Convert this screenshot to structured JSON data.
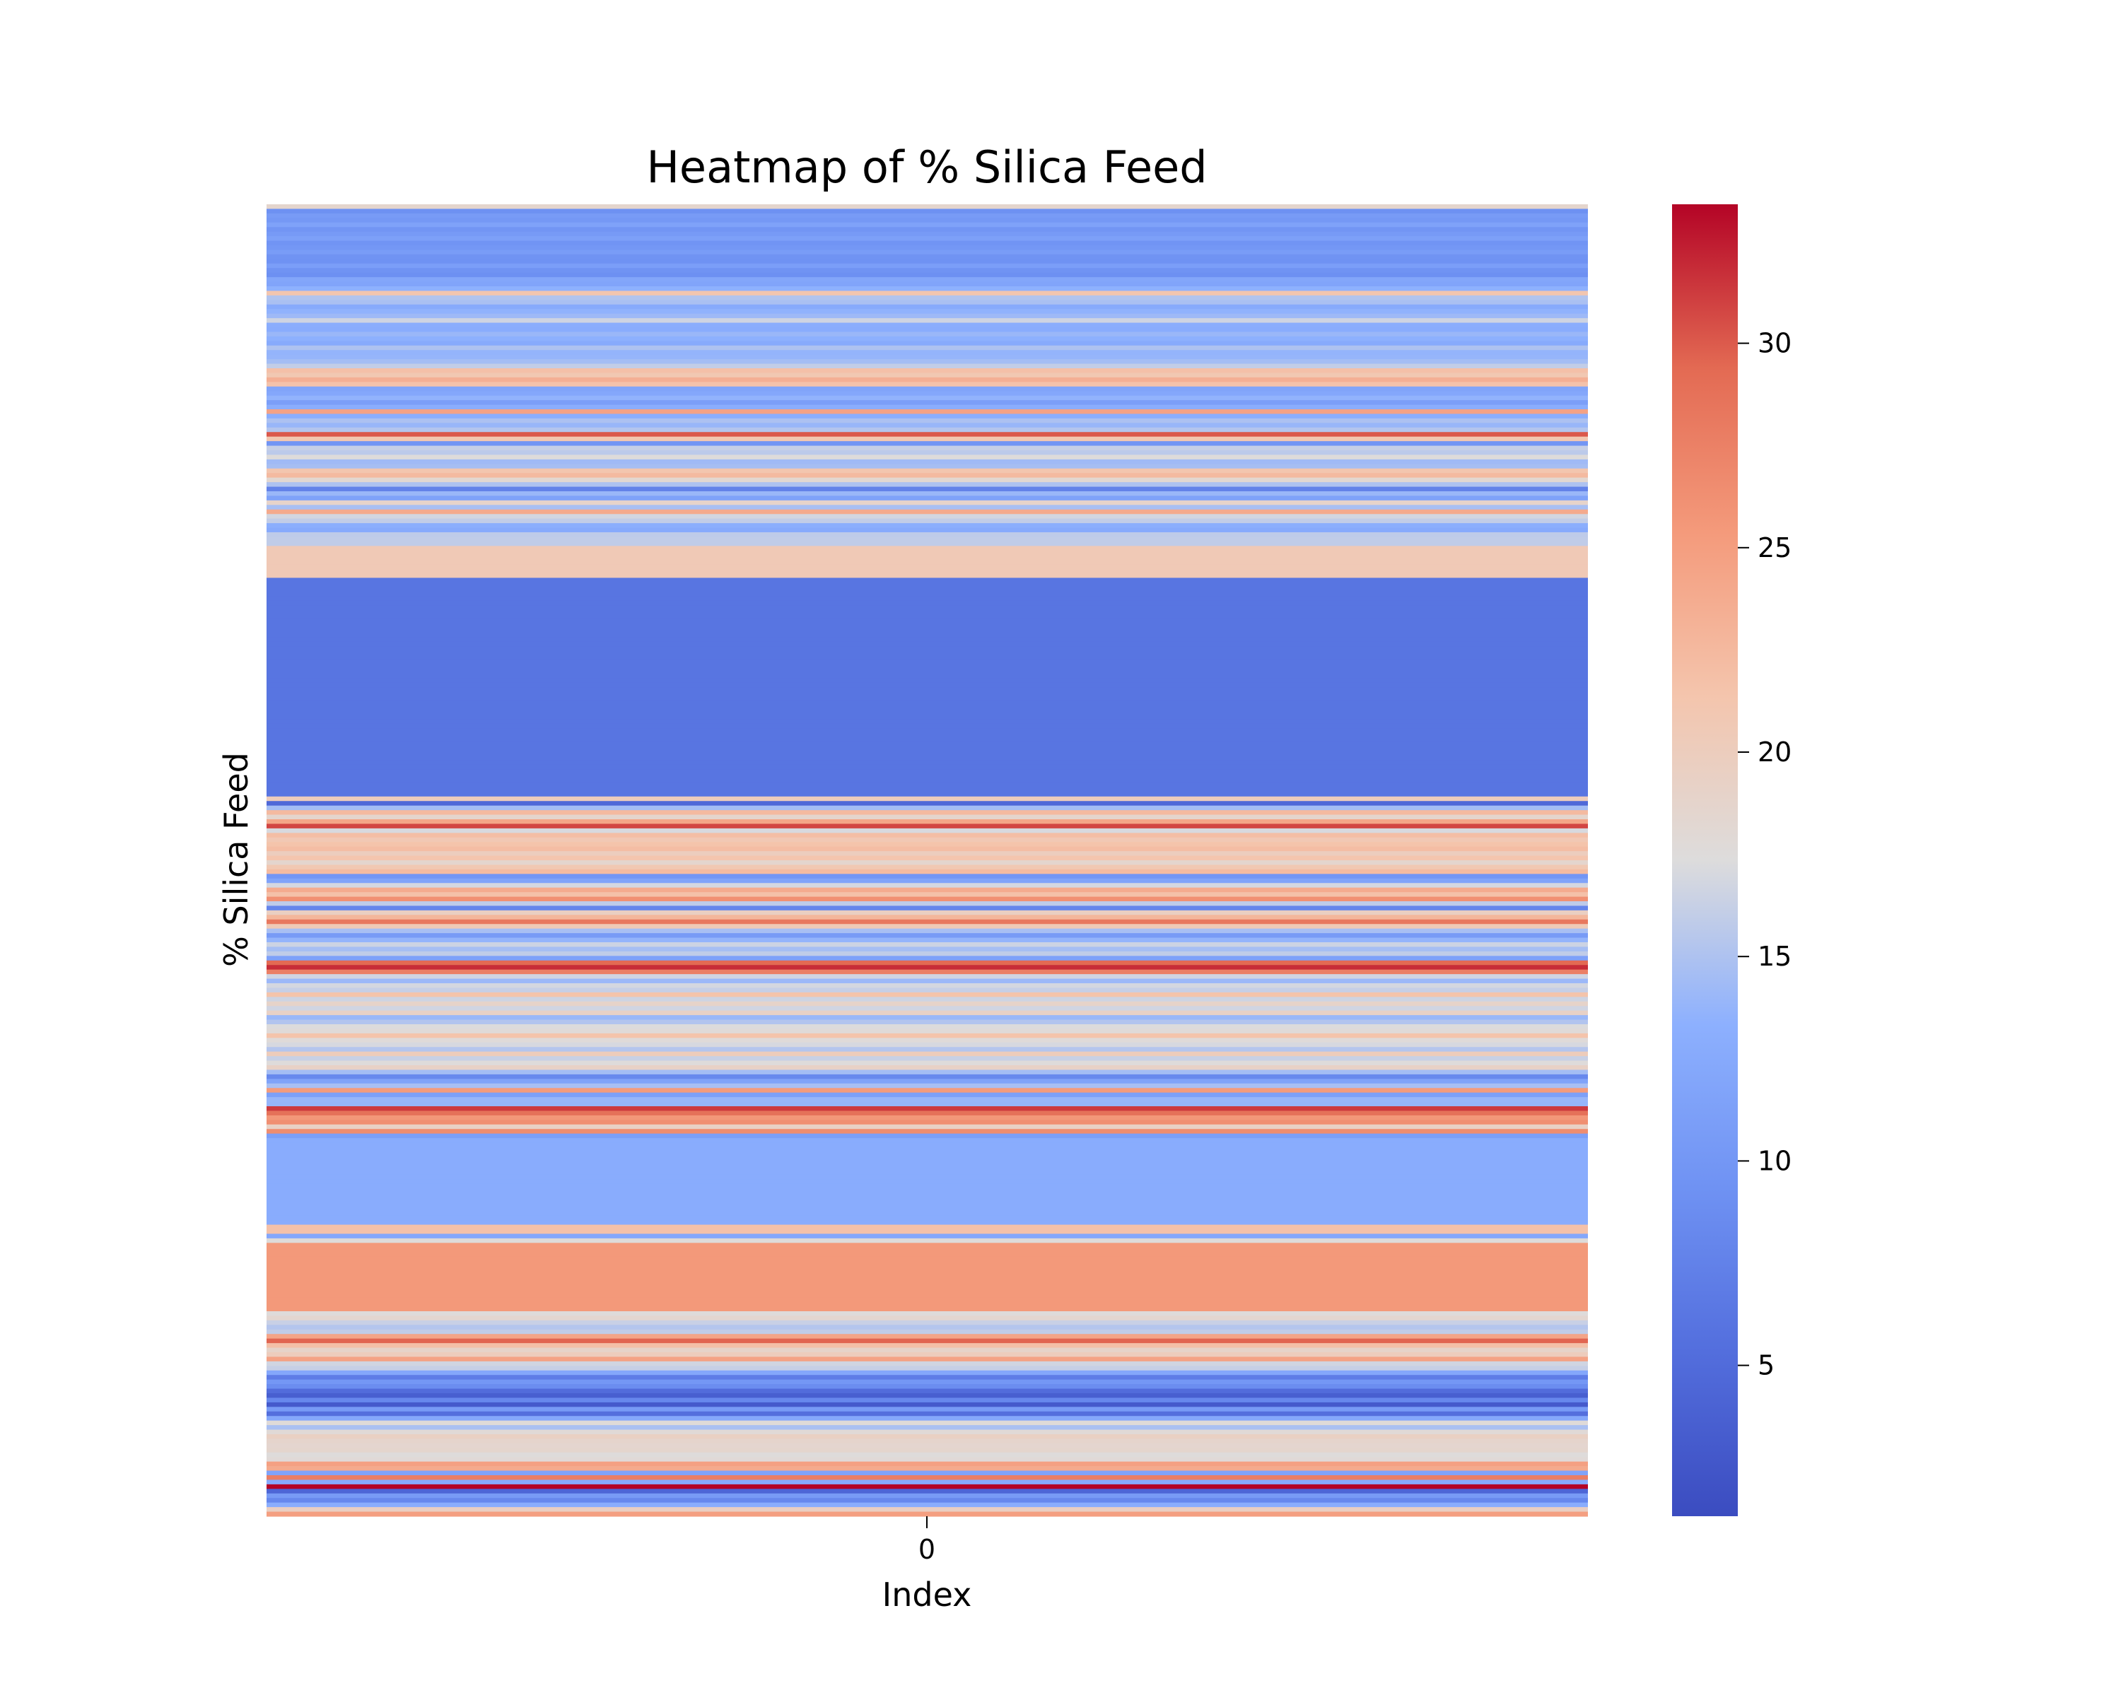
{
  "chart_data": {
    "type": "heatmap",
    "title": "Heatmap of % Silica Feed",
    "xlabel": "Index",
    "ylabel": "% Silica Feed",
    "x_categories": [
      "0"
    ],
    "colormap": "coolwarm",
    "colorbar": {
      "vmin": 1.31,
      "vmax": 33.4,
      "ticks": [
        5,
        10,
        15,
        20,
        25,
        30
      ]
    },
    "values": [
      18.6,
      9.2,
      10.5,
      10.1,
      11.5,
      9.8,
      10.4,
      11.2,
      9.6,
      10.0,
      10.7,
      9.5,
      9.3,
      11.0,
      9.4,
      9.1,
      12.0,
      11.8,
      13.4,
      21.2,
      15.2,
      14.8,
      12.5,
      13.5,
      14.2,
      16.6,
      13.0,
      12.8,
      14.0,
      13.3,
      12.6,
      15.0,
      13.7,
      13.8,
      14.5,
      16.0,
      21.8,
      20.9,
      23.4,
      21.6,
      11.7,
      12.2,
      13.6,
      11.0,
      12.9,
      24.6,
      13.1,
      14.9,
      13.9,
      15.3,
      30.1,
      21.0,
      9.8,
      16.2,
      15.7,
      17.5,
      14.3,
      14.6,
      21.2,
      22.4,
      18.3,
      15.0,
      7.6,
      14.0,
      11.5,
      18.9,
      14.7,
      23.9,
      16.8,
      16.0,
      13.1,
      12.5,
      15.8,
      15.9,
      15.9,
      20.6,
      20.6,
      20.6,
      20.6,
      20.6,
      20.6,
      20.6,
      6.1,
      6.1,
      6.1,
      6.1,
      6.1,
      6.1,
      6.1,
      6.1,
      6.1,
      6.1,
      6.1,
      6.1,
      6.1,
      6.1,
      6.1,
      6.1,
      6.1,
      6.1,
      6.1,
      6.1,
      6.1,
      6.1,
      6.1,
      6.1,
      6.1,
      6.1,
      6.1,
      6.1,
      6.1,
      6.1,
      6.1,
      6.1,
      6.1,
      6.1,
      6.1,
      6.1,
      6.1,
      6.1,
      6.1,
      6.1,
      6.1,
      6.1,
      6.1,
      6.1,
      6.1,
      6.1,
      6.1,
      6.1,
      20.2,
      4.6,
      14.5,
      22.4,
      18.6,
      24.3,
      30.8,
      17.1,
      22.0,
      20.8,
      21.5,
      22.1,
      19.9,
      21.3,
      18.6,
      20.9,
      22.3,
      9.9,
      11.6,
      16.9,
      23.8,
      21.7,
      26.2,
      15.8,
      7.9,
      19.6,
      22.7,
      28.2,
      20.5,
      14.7,
      10.6,
      13.7,
      16.5,
      14.6,
      15.9,
      11.4,
      29.4,
      31.8,
      27.6,
      16.7,
      14.1,
      16.9,
      16.2,
      21.5,
      16.6,
      19.0,
      16.7,
      19.2,
      14.0,
      15.2,
      17.3,
      17.7,
      21.5,
      17.7,
      17.0,
      15.3,
      20.2,
      16.3,
      17.5,
      19.2,
      14.5,
      8.3,
      11.6,
      14.7,
      25.3,
      11.2,
      13.9,
      13.8,
      31.3,
      28.8,
      25.6,
      26.3,
      19.2,
      26.5,
      11.1,
      12.8,
      12.8,
      12.8,
      12.8,
      12.8,
      12.8,
      12.8,
      12.8,
      12.8,
      12.8,
      12.8,
      12.8,
      12.8,
      12.8,
      12.8,
      12.8,
      12.8,
      12.8,
      12.8,
      21.7,
      21.7,
      12.2,
      17.6,
      25.5,
      25.5,
      25.5,
      25.5,
      25.5,
      25.5,
      25.5,
      25.5,
      25.5,
      25.5,
      25.5,
      25.5,
      25.5,
      25.5,
      25.5,
      17.5,
      18.4,
      16.3,
      15.3,
      15.9,
      24.4,
      29.6,
      21.8,
      19.0,
      20.1,
      24.6,
      16.7,
      16.2,
      12.1,
      6.9,
      10.0,
      8.8,
      5.1,
      3.5,
      8.2,
      3.0,
      10.6,
      5.4,
      12.3,
      17.7,
      14.8,
      17.9,
      19.5,
      18.7,
      18.5,
      18.6,
      17.5,
      17.8,
      24.8,
      23.9,
      11.6,
      27.7,
      12.7,
      33.4,
      4.4,
      10.6,
      8.2,
      13.0,
      19.6,
      24.9
    ]
  }
}
